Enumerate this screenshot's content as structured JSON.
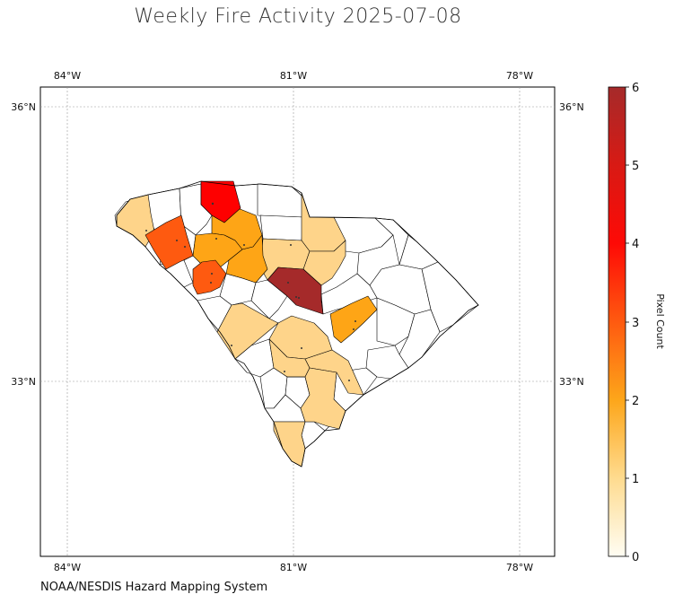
{
  "title": "Weekly Fire Activity 2025-07-08",
  "credit": "NOAA/NESDIS Hazard Mapping System",
  "graticule": {
    "lon_labels": [
      "84°W",
      "81°W",
      "78°W"
    ],
    "lat_labels": [
      "36°N",
      "33°N"
    ]
  },
  "colorbar": {
    "label": "Pixel Count",
    "ticks": [
      "0",
      "1",
      "2",
      "3",
      "4",
      "5",
      "6"
    ],
    "min": 0,
    "max": 6,
    "colors": [
      "#fffdf3",
      "#fedb8f",
      "#fda61a",
      "#fe5a10",
      "#fe0a06",
      "#e01a12",
      "#a52a2a"
    ]
  },
  "map_colors": {
    "one": "#fed48a",
    "two": "#fea516",
    "three": "#fe5a10",
    "four": "#fe0000",
    "six": "#a52a2a",
    "zero": "#ffffff"
  }
}
